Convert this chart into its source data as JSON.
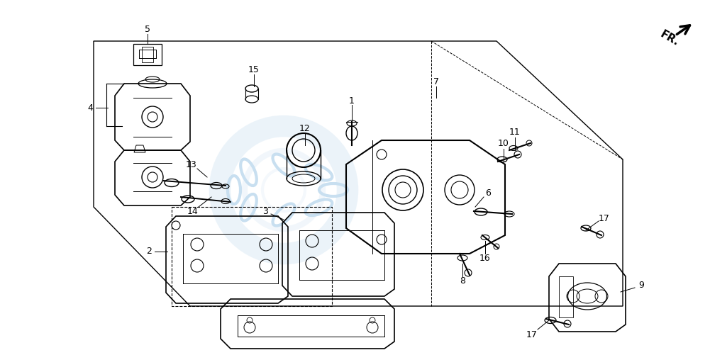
{
  "bg_color": "#ffffff",
  "line_color": "#000000",
  "watermark_color": "#c8dff0"
}
